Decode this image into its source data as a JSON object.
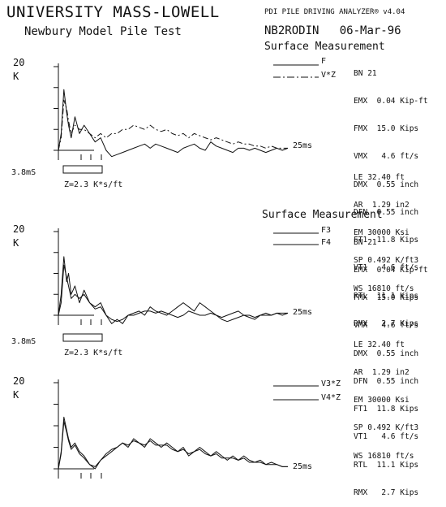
{
  "header": {
    "title": "UNIVERSITY MASS-LOWELL",
    "subtitle": "Newbury Model Pile Test",
    "analyzer": "PDI PILE DRIVING ANALYZER® v4.04",
    "record_id": "NB2RODIN",
    "date": "06-Mar-96"
  },
  "panels": [
    {
      "heading": "Surface Measurement",
      "ymax_label": "20",
      "unit_label": "K",
      "time_label": "25ms",
      "scale_time_label": "3.8mS",
      "impedance_label": "Z=2.3 K*s/ft",
      "legend": [
        "F",
        "V*Z"
      ],
      "params": [
        {
          "k": "BN",
          "v": "21",
          "u": ""
        },
        {
          "k": "EMX",
          "v": "0.04",
          "u": "Kip-ft"
        },
        {
          "k": "FMX",
          "v": "15.0",
          "u": "Kips"
        },
        {
          "k": "VMX",
          "v": "4.6",
          "u": "ft/s"
        },
        {
          "k": "DMX",
          "v": "0.55",
          "u": "inch"
        },
        {
          "k": "DFN",
          "v": "0.55",
          "u": "inch"
        },
        {
          "k": "FT1",
          "v": "11.8",
          "u": "Kips"
        },
        {
          "k": "VT1",
          "v": "4.6",
          "u": "ft/s"
        },
        {
          "k": "RTL",
          "v": "11.1",
          "u": "Kips"
        },
        {
          "k": "RMX",
          "v": "2.7",
          "u": "Kips"
        }
      ],
      "pile_params": [
        {
          "k": "LE",
          "v": "32.40",
          "u": "ft"
        },
        {
          "k": "AR",
          "v": "1.29",
          "u": "in2"
        },
        {
          "k": "EM",
          "v": "30000",
          "u": "Ksi"
        },
        {
          "k": "SP",
          "v": "0.492",
          "u": "K/ft3"
        },
        {
          "k": "WS",
          "v": "16810",
          "u": "ft/s"
        }
      ]
    },
    {
      "heading": "Surface Measurement",
      "ymax_label": "20",
      "unit_label": "K",
      "time_label": "25ms",
      "scale_time_label": "3.8mS",
      "impedance_label": "Z=2.3 K*s/ft",
      "legend": [
        "F3",
        "F4"
      ],
      "params": [
        {
          "k": "BN",
          "v": "21",
          "u": ""
        },
        {
          "k": "EMX",
          "v": "0.04",
          "u": "Kip-ft"
        },
        {
          "k": "FMX",
          "v": "15.0",
          "u": "Kips"
        },
        {
          "k": "VMX",
          "v": "4.6",
          "u": "ft/s"
        },
        {
          "k": "DMX",
          "v": "0.55",
          "u": "inch"
        },
        {
          "k": "DFN",
          "v": "0.55",
          "u": "inch"
        },
        {
          "k": "FT1",
          "v": "11.8",
          "u": "Kips"
        },
        {
          "k": "VT1",
          "v": "4.6",
          "u": "ft/s"
        },
        {
          "k": "RTL",
          "v": "11.1",
          "u": "Kips"
        },
        {
          "k": "RMX",
          "v": "2.7",
          "u": "Kips"
        }
      ],
      "pile_params": [
        {
          "k": "LE",
          "v": "32.40",
          "u": "ft"
        },
        {
          "k": "AR",
          "v": "1.29",
          "u": "in2"
        },
        {
          "k": "EM",
          "v": "30000",
          "u": "Ksi"
        },
        {
          "k": "SP",
          "v": "0.492",
          "u": "K/ft3"
        },
        {
          "k": "WS",
          "v": "16810",
          "u": "ft/s"
        }
      ]
    },
    {
      "ymax_label": "20",
      "unit_label": "K",
      "time_label": "25ms",
      "legend": [
        "V3*Z",
        "V4*Z"
      ]
    }
  ],
  "chart_data": [
    {
      "type": "line",
      "ylim": [
        -2,
        20
      ],
      "xlim": [
        0,
        25
      ],
      "x_unit": "ms",
      "series": [
        {
          "name": "F",
          "style": "solid",
          "x": [
            0,
            0.3,
            0.6,
            0.9,
            1.1,
            1.4,
            1.8,
            2.3,
            2.8,
            3.4,
            4.0,
            4.6,
            5.2,
            5.8,
            6.4,
            7.0,
            7.6,
            8.2,
            8.8,
            9.4,
            10.0,
            10.6,
            11.2,
            11.8,
            12.4,
            13.0,
            13.6,
            14.2,
            14.8,
            15.4,
            16.0,
            16.6,
            17.2,
            17.8,
            18.4,
            19.0,
            19.6,
            20.2,
            20.8,
            21.4,
            22.0,
            22.6,
            23.2,
            23.8,
            24.4,
            25.0
          ],
          "y": [
            0,
            4,
            14.5,
            9,
            6,
            3,
            8,
            4,
            6,
            4,
            2,
            3,
            0,
            -1.5,
            -1,
            -0.5,
            0,
            0.5,
            1,
            1.5,
            0.5,
            1.5,
            1,
            0.5,
            0,
            -0.5,
            0.5,
            1,
            1.5,
            0.5,
            0,
            2,
            1,
            0.5,
            0,
            -0.5,
            0.5,
            0.5,
            0,
            0.5,
            0,
            -0.5,
            0,
            0.5,
            0,
            0.5
          ]
        },
        {
          "name": "V*Z",
          "style": "dashed",
          "x": [
            0,
            0.3,
            0.6,
            0.9,
            1.1,
            1.4,
            1.8,
            2.3,
            2.8,
            3.4,
            4.0,
            4.6,
            5.2,
            5.8,
            6.4,
            7.0,
            7.6,
            8.2,
            8.8,
            9.4,
            10.0,
            10.6,
            11.2,
            11.8,
            12.4,
            13.0,
            13.6,
            14.2,
            14.8,
            15.4,
            16.0,
            16.6,
            17.2,
            17.8,
            18.4,
            19.0,
            19.6,
            20.2,
            20.8,
            21.4,
            22.0,
            22.6,
            23.2,
            23.8,
            24.4,
            25.0
          ],
          "y": [
            0,
            3,
            12,
            10,
            7,
            4,
            6,
            5,
            5,
            4,
            3,
            4,
            3,
            4,
            4,
            5,
            5,
            6,
            5.5,
            5,
            6,
            5,
            4.5,
            5,
            4,
            3.5,
            4,
            3,
            4,
            3.5,
            3,
            2.5,
            3,
            2.5,
            2,
            1.5,
            2,
            1.5,
            1.5,
            1,
            1,
            0.5,
            1,
            0.5,
            0.5,
            0.5
          ]
        }
      ]
    },
    {
      "type": "line",
      "ylim": [
        -2,
        20
      ],
      "xlim": [
        0,
        25
      ],
      "x_unit": "ms",
      "series": [
        {
          "name": "F3",
          "style": "solid",
          "x": [
            0,
            0.3,
            0.6,
            0.9,
            1.1,
            1.4,
            1.8,
            2.3,
            2.8,
            3.4,
            4.0,
            4.6,
            5.2,
            5.8,
            6.4,
            7.0,
            7.6,
            8.2,
            8.8,
            9.4,
            10.0,
            10.6,
            11.2,
            11.8,
            12.4,
            13.0,
            13.6,
            14.2,
            14.8,
            15.4,
            16.0,
            16.6,
            17.2,
            17.8,
            18.4,
            19.0,
            19.6,
            20.2,
            20.8,
            21.4,
            22.0,
            22.6,
            23.2,
            23.8,
            24.4,
            25.0
          ],
          "y": [
            0,
            5,
            14,
            8,
            10,
            5,
            7,
            3,
            6,
            3,
            2,
            3,
            0,
            -2,
            -1,
            -2,
            0,
            0.5,
            1,
            0,
            2,
            1,
            0.5,
            0,
            1,
            2,
            3,
            2,
            1,
            3,
            2,
            1,
            0,
            -0.5,
            0,
            0.5,
            1,
            0,
            -0.5,
            -1,
            0,
            0.5,
            0,
            0.5,
            0,
            0.5
          ]
        },
        {
          "name": "F4",
          "style": "solid",
          "x": [
            0,
            0.3,
            0.6,
            0.9,
            1.1,
            1.4,
            1.8,
            2.3,
            2.8,
            3.4,
            4.0,
            4.6,
            5.2,
            5.8,
            6.4,
            7.0,
            7.6,
            8.2,
            8.8,
            9.4,
            10.0,
            10.6,
            11.2,
            11.8,
            12.4,
            13.0,
            13.6,
            14.2,
            14.8,
            15.4,
            16.0,
            16.6,
            17.2,
            17.8,
            18.4,
            19.0,
            19.6,
            20.2,
            20.8,
            21.4,
            22.0,
            22.6,
            23.2,
            23.8,
            24.4,
            25.0
          ],
          "y": [
            0,
            3,
            12,
            9,
            7,
            4,
            5,
            4,
            5,
            3,
            1.5,
            2,
            0,
            -1,
            -1.5,
            -1,
            0,
            0,
            0.5,
            1,
            1,
            0.5,
            1,
            0.5,
            0,
            -0.5,
            0,
            1,
            0.5,
            0,
            0,
            0.5,
            0,
            -1,
            -1.5,
            -1,
            -0.5,
            0,
            0,
            -0.5,
            0,
            0,
            0,
            0.5,
            0.5,
            0.5
          ]
        }
      ]
    },
    {
      "type": "line",
      "ylim": [
        -2,
        20
      ],
      "xlim": [
        0,
        25
      ],
      "x_unit": "ms",
      "series": [
        {
          "name": "V3*Z",
          "style": "solid",
          "x": [
            0,
            0.3,
            0.6,
            0.9,
            1.1,
            1.4,
            1.8,
            2.3,
            2.8,
            3.4,
            4.0,
            4.6,
            5.2,
            5.8,
            6.4,
            7.0,
            7.6,
            8.2,
            8.8,
            9.4,
            10.0,
            10.6,
            11.2,
            11.8,
            12.4,
            13.0,
            13.6,
            14.2,
            14.8,
            15.4,
            16.0,
            16.6,
            17.2,
            17.8,
            18.4,
            19.0,
            19.6,
            20.2,
            20.8,
            21.4,
            22.0,
            22.6,
            23.2,
            23.8,
            24.4,
            25.0
          ],
          "y": [
            0,
            4,
            12,
            9,
            7,
            5,
            6,
            4,
            3,
            1,
            0,
            2,
            3,
            4,
            5,
            6,
            5,
            7,
            6,
            5,
            7,
            6,
            5,
            6,
            5,
            4,
            5,
            3,
            4,
            5,
            4,
            3,
            4,
            3,
            2,
            3,
            2,
            3,
            2,
            1.5,
            2,
            1,
            1.5,
            1,
            0.5,
            0.5
          ]
        },
        {
          "name": "V4*Z",
          "style": "solid",
          "x": [
            0,
            0.3,
            0.6,
            0.9,
            1.1,
            1.4,
            1.8,
            2.3,
            2.8,
            3.4,
            4.0,
            4.6,
            5.2,
            5.8,
            6.4,
            7.0,
            7.6,
            8.2,
            8.8,
            9.4,
            10.0,
            10.6,
            11.2,
            11.8,
            12.4,
            13.0,
            13.6,
            14.2,
            14.8,
            15.4,
            16.0,
            16.6,
            17.2,
            17.8,
            18.4,
            19.0,
            19.6,
            20.2,
            20.8,
            21.4,
            22.0,
            22.6,
            23.2,
            23.8,
            24.4,
            25.0
          ],
          "y": [
            0,
            3.5,
            11,
            8.5,
            6.5,
            4.5,
            5.5,
            3.5,
            2.5,
            1,
            0.5,
            2,
            3.5,
            4.5,
            5,
            6,
            5.5,
            6.5,
            6,
            5.5,
            6.5,
            5.5,
            5.5,
            5.5,
            4.5,
            4,
            4.5,
            3.5,
            4,
            4.5,
            3.5,
            3,
            3.5,
            2.5,
            2.5,
            2.5,
            2,
            2.5,
            1.5,
            1.5,
            1.5,
            1,
            1,
            1,
            0.5,
            0.5
          ]
        }
      ]
    }
  ]
}
